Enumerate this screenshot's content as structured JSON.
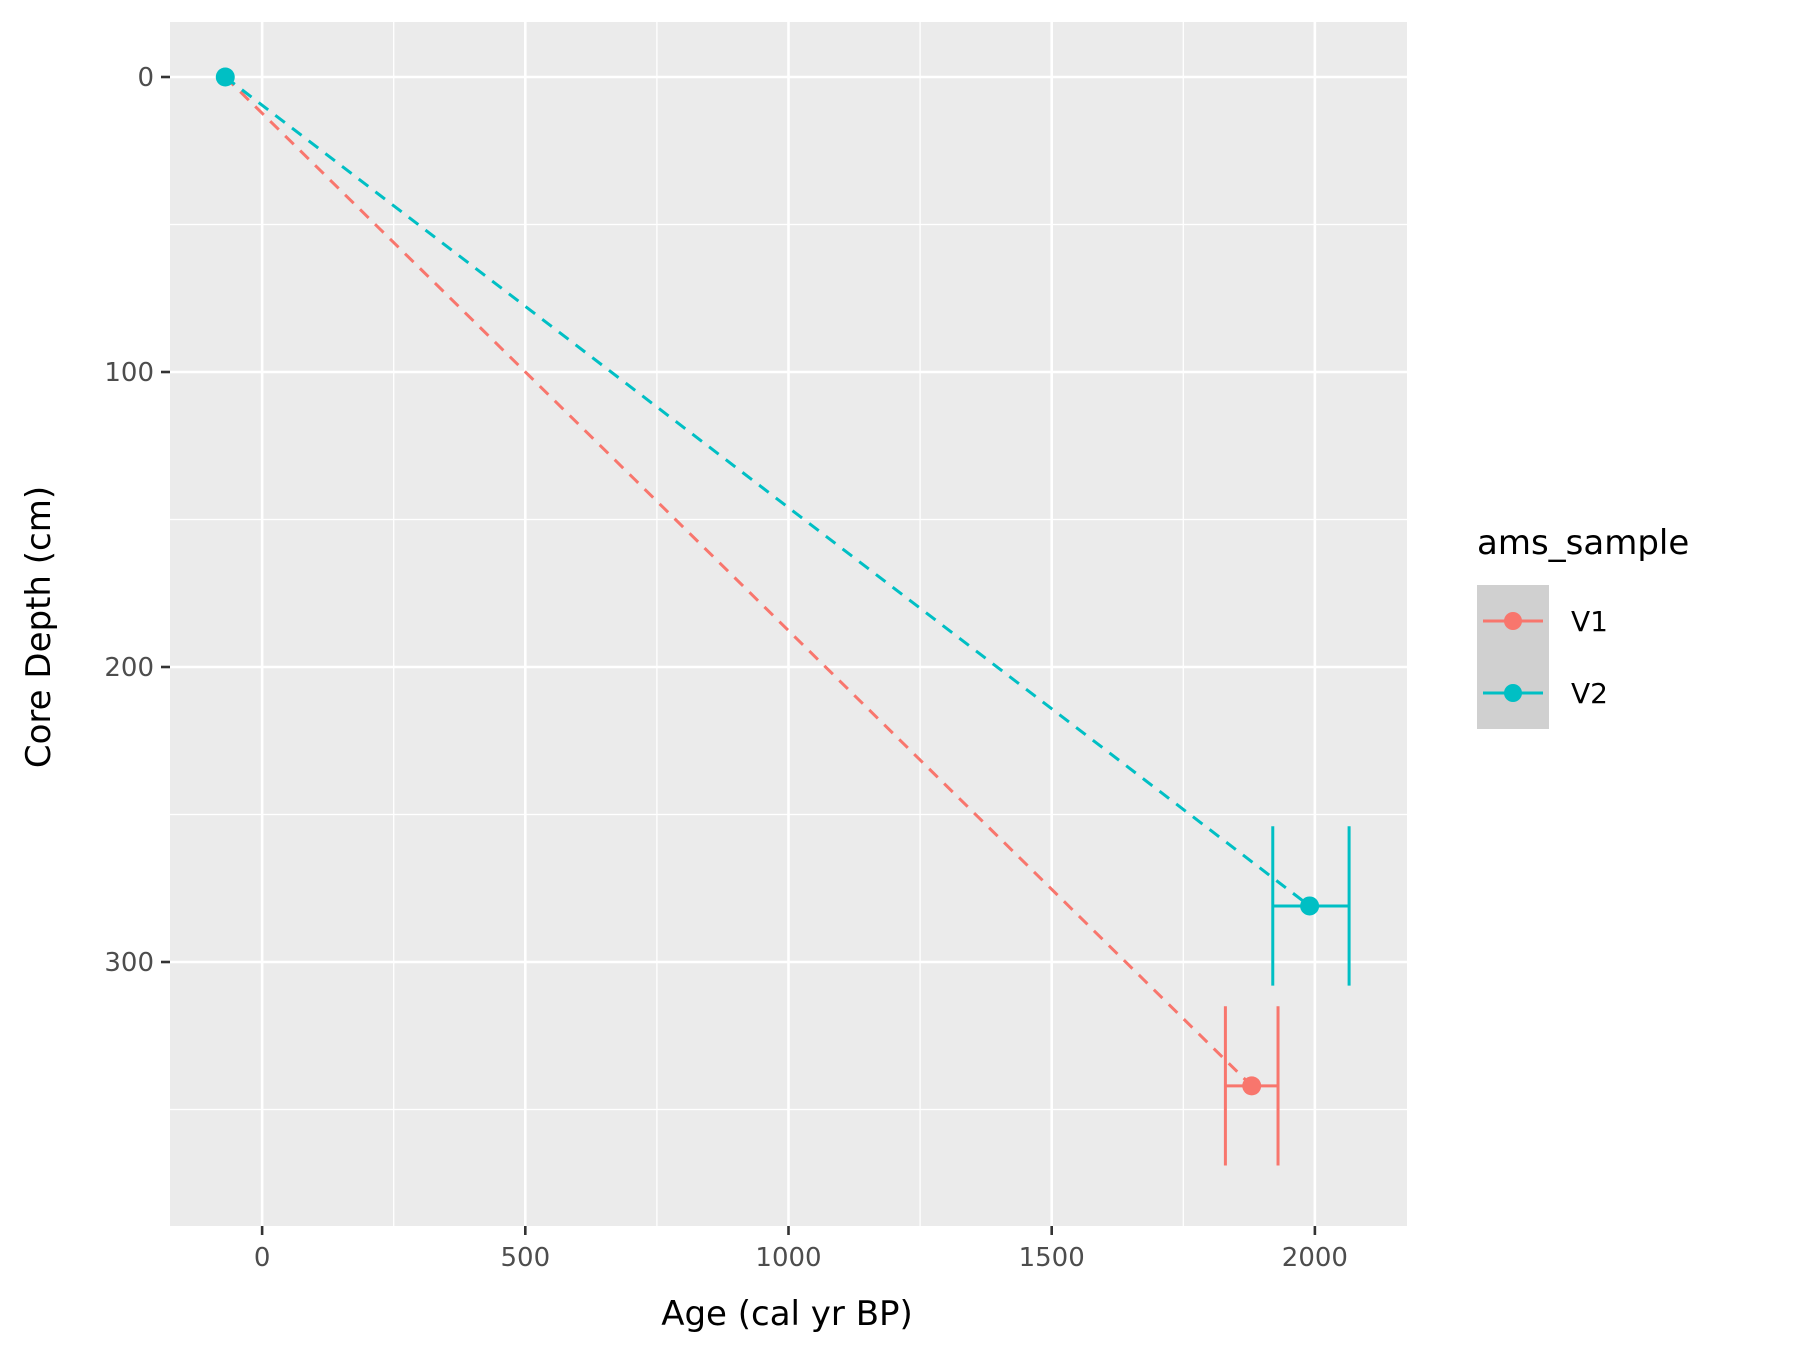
{
  "chart_data": {
    "type": "scatter",
    "title": "",
    "xlabel": "Age (cal yr BP)",
    "ylabel": "Core Depth (cm)",
    "xlim": [
      -175,
      2175
    ],
    "ylim": [
      0,
      380
    ],
    "y_reversed": true,
    "x_ticks": [
      0,
      500,
      1000,
      1500,
      2000
    ],
    "x_tick_labels": [
      "0",
      "500",
      "1000",
      "1500",
      "2000"
    ],
    "y_ticks": [
      0,
      100,
      200,
      300
    ],
    "y_tick_labels": [
      "0",
      "100",
      "200",
      "300"
    ],
    "grid": true,
    "legend": {
      "title": "ams_sample",
      "position": "right"
    },
    "series": [
      {
        "name": "V1",
        "color": "#F8766D",
        "line_style": "dashed",
        "line": [
          {
            "x": -70,
            "y": 0
          },
          {
            "x": 1880,
            "y": 342
          }
        ],
        "points": [
          {
            "x": 1880,
            "y": 342,
            "xmin": 1830,
            "xmax": 1930,
            "ymin": 315,
            "ymax": 369
          }
        ]
      },
      {
        "name": "V2",
        "color": "#00BFC4",
        "line_style": "dashed",
        "line": [
          {
            "x": -70,
            "y": 0
          },
          {
            "x": 1990,
            "y": 281
          }
        ],
        "points": [
          {
            "x": -70,
            "y": 0
          },
          {
            "x": 1990,
            "y": 281,
            "xmin": 1920,
            "xmax": 2065,
            "ymin": 254,
            "ymax": 308
          }
        ]
      }
    ],
    "colors": {
      "panel_bg": "#EBEBEB",
      "grid": "#FFFFFF",
      "legend_key_bg": "#D0D0D0"
    }
  }
}
